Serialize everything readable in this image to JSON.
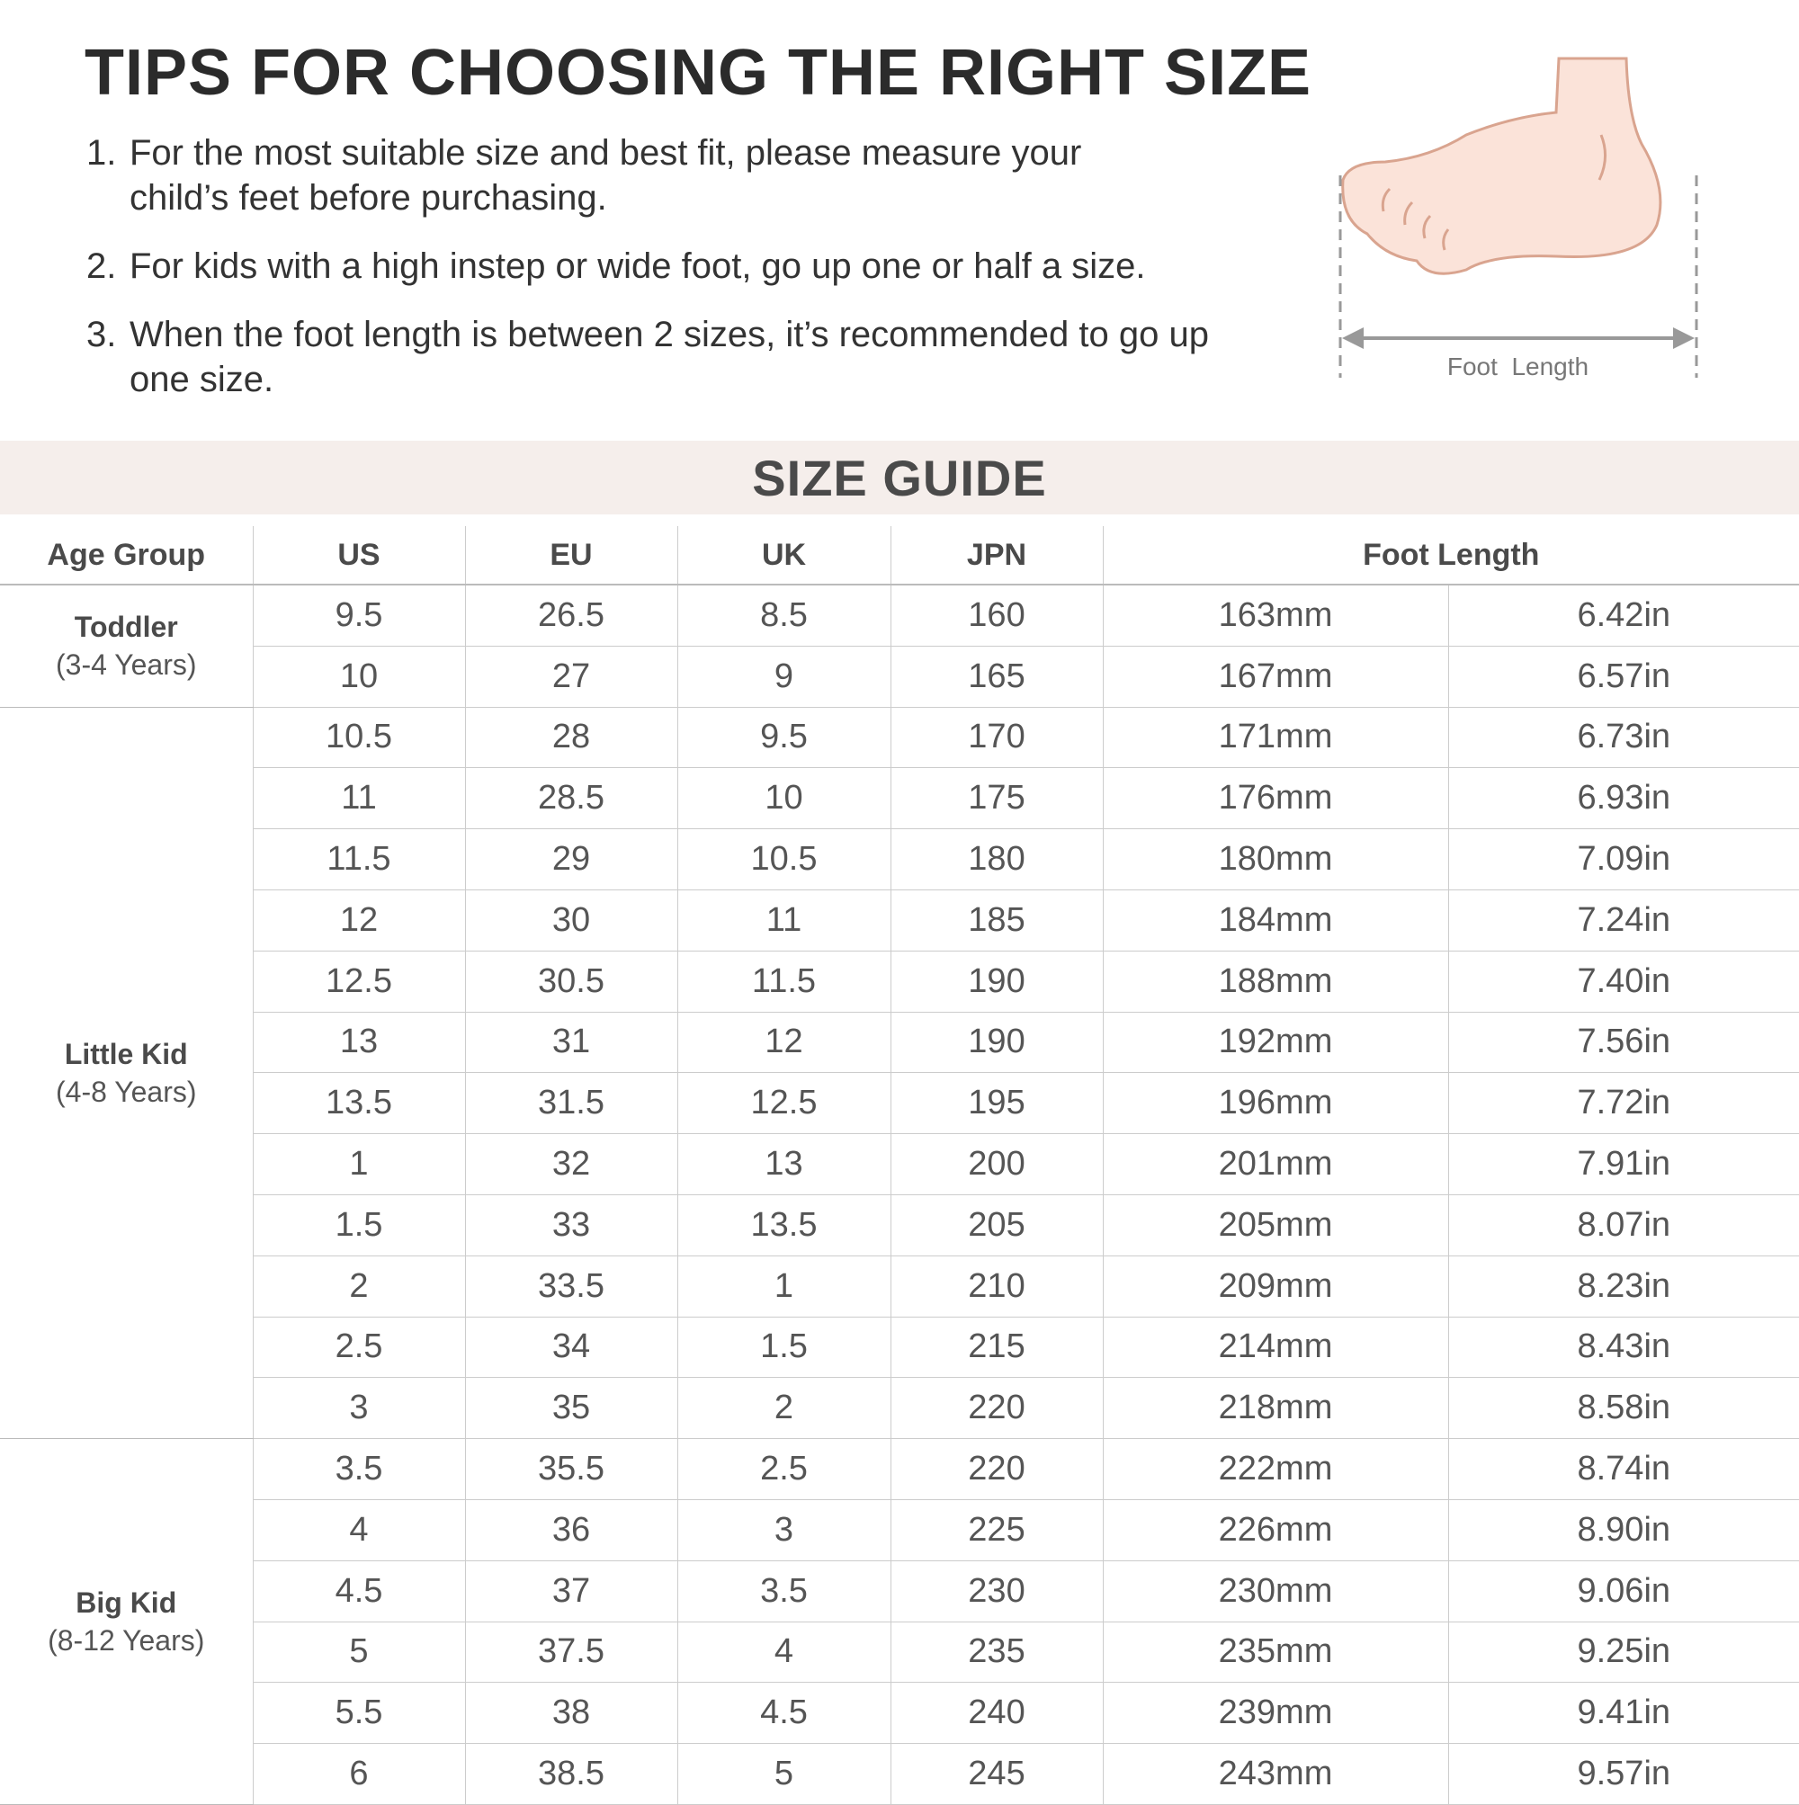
{
  "tips": {
    "title": "TIPS FOR CHOOSING THE RIGHT SIZE",
    "items": [
      {
        "num": "1.",
        "text": "For the most suitable size and best fit, please measure your child’s feet before purchasing."
      },
      {
        "num": "2.",
        "text": "For kids with a high instep or wide foot, go up one or half a size."
      },
      {
        "num": "3.",
        "text": "When the foot length is between 2 sizes, it’s recommended to go up one size."
      }
    ]
  },
  "illustration": {
    "label": "Foot  Length",
    "skin_color": "#fbe3d9",
    "outline_color": "#d9a48f"
  },
  "banner": {
    "title": "SIZE GUIDE",
    "color": "#f5eeeb"
  },
  "table": {
    "headers": [
      "Age Group",
      "US",
      "EU",
      "UK",
      "JPN",
      "Foot Length"
    ],
    "groups": [
      {
        "name": "Toddler",
        "range": "(3-4 Years)",
        "rows": [
          [
            "9.5",
            "26.5",
            "8.5",
            "160",
            "163mm",
            "6.42in"
          ],
          [
            "10",
            "27",
            "9",
            "165",
            "167mm",
            "6.57in"
          ]
        ]
      },
      {
        "name": "Little Kid",
        "range": "(4-8 Years)",
        "rows": [
          [
            "10.5",
            "28",
            "9.5",
            "170",
            "171mm",
            "6.73in"
          ],
          [
            "11",
            "28.5",
            "10",
            "175",
            "176mm",
            "6.93in"
          ],
          [
            "11.5",
            "29",
            "10.5",
            "180",
            "180mm",
            "7.09in"
          ],
          [
            "12",
            "30",
            "11",
            "185",
            "184mm",
            "7.24in"
          ],
          [
            "12.5",
            "30.5",
            "11.5",
            "190",
            "188mm",
            "7.40in"
          ],
          [
            "13",
            "31",
            "12",
            "190",
            "192mm",
            "7.56in"
          ],
          [
            "13.5",
            "31.5",
            "12.5",
            "195",
            "196mm",
            "7.72in"
          ],
          [
            "1",
            "32",
            "13",
            "200",
            "201mm",
            "7.91in"
          ],
          [
            "1.5",
            "33",
            "13.5",
            "205",
            "205mm",
            "8.07in"
          ],
          [
            "2",
            "33.5",
            "1",
            "210",
            "209mm",
            "8.23in"
          ],
          [
            "2.5",
            "34",
            "1.5",
            "215",
            "214mm",
            "8.43in"
          ],
          [
            "3",
            "35",
            "2",
            "220",
            "218mm",
            "8.58in"
          ]
        ]
      },
      {
        "name": "Big Kid",
        "range": "(8-12 Years)",
        "rows": [
          [
            "3.5",
            "35.5",
            "2.5",
            "220",
            "222mm",
            "8.74in"
          ],
          [
            "4",
            "36",
            "3",
            "225",
            "226mm",
            "8.90in"
          ],
          [
            "4.5",
            "37",
            "3.5",
            "230",
            "230mm",
            "9.06in"
          ],
          [
            "5",
            "37.5",
            "4",
            "235",
            "235mm",
            "9.25in"
          ],
          [
            "5.5",
            "38",
            "4.5",
            "240",
            "239mm",
            "9.41in"
          ],
          [
            "6",
            "38.5",
            "5",
            "245",
            "243mm",
            "9.57in"
          ]
        ]
      }
    ]
  }
}
